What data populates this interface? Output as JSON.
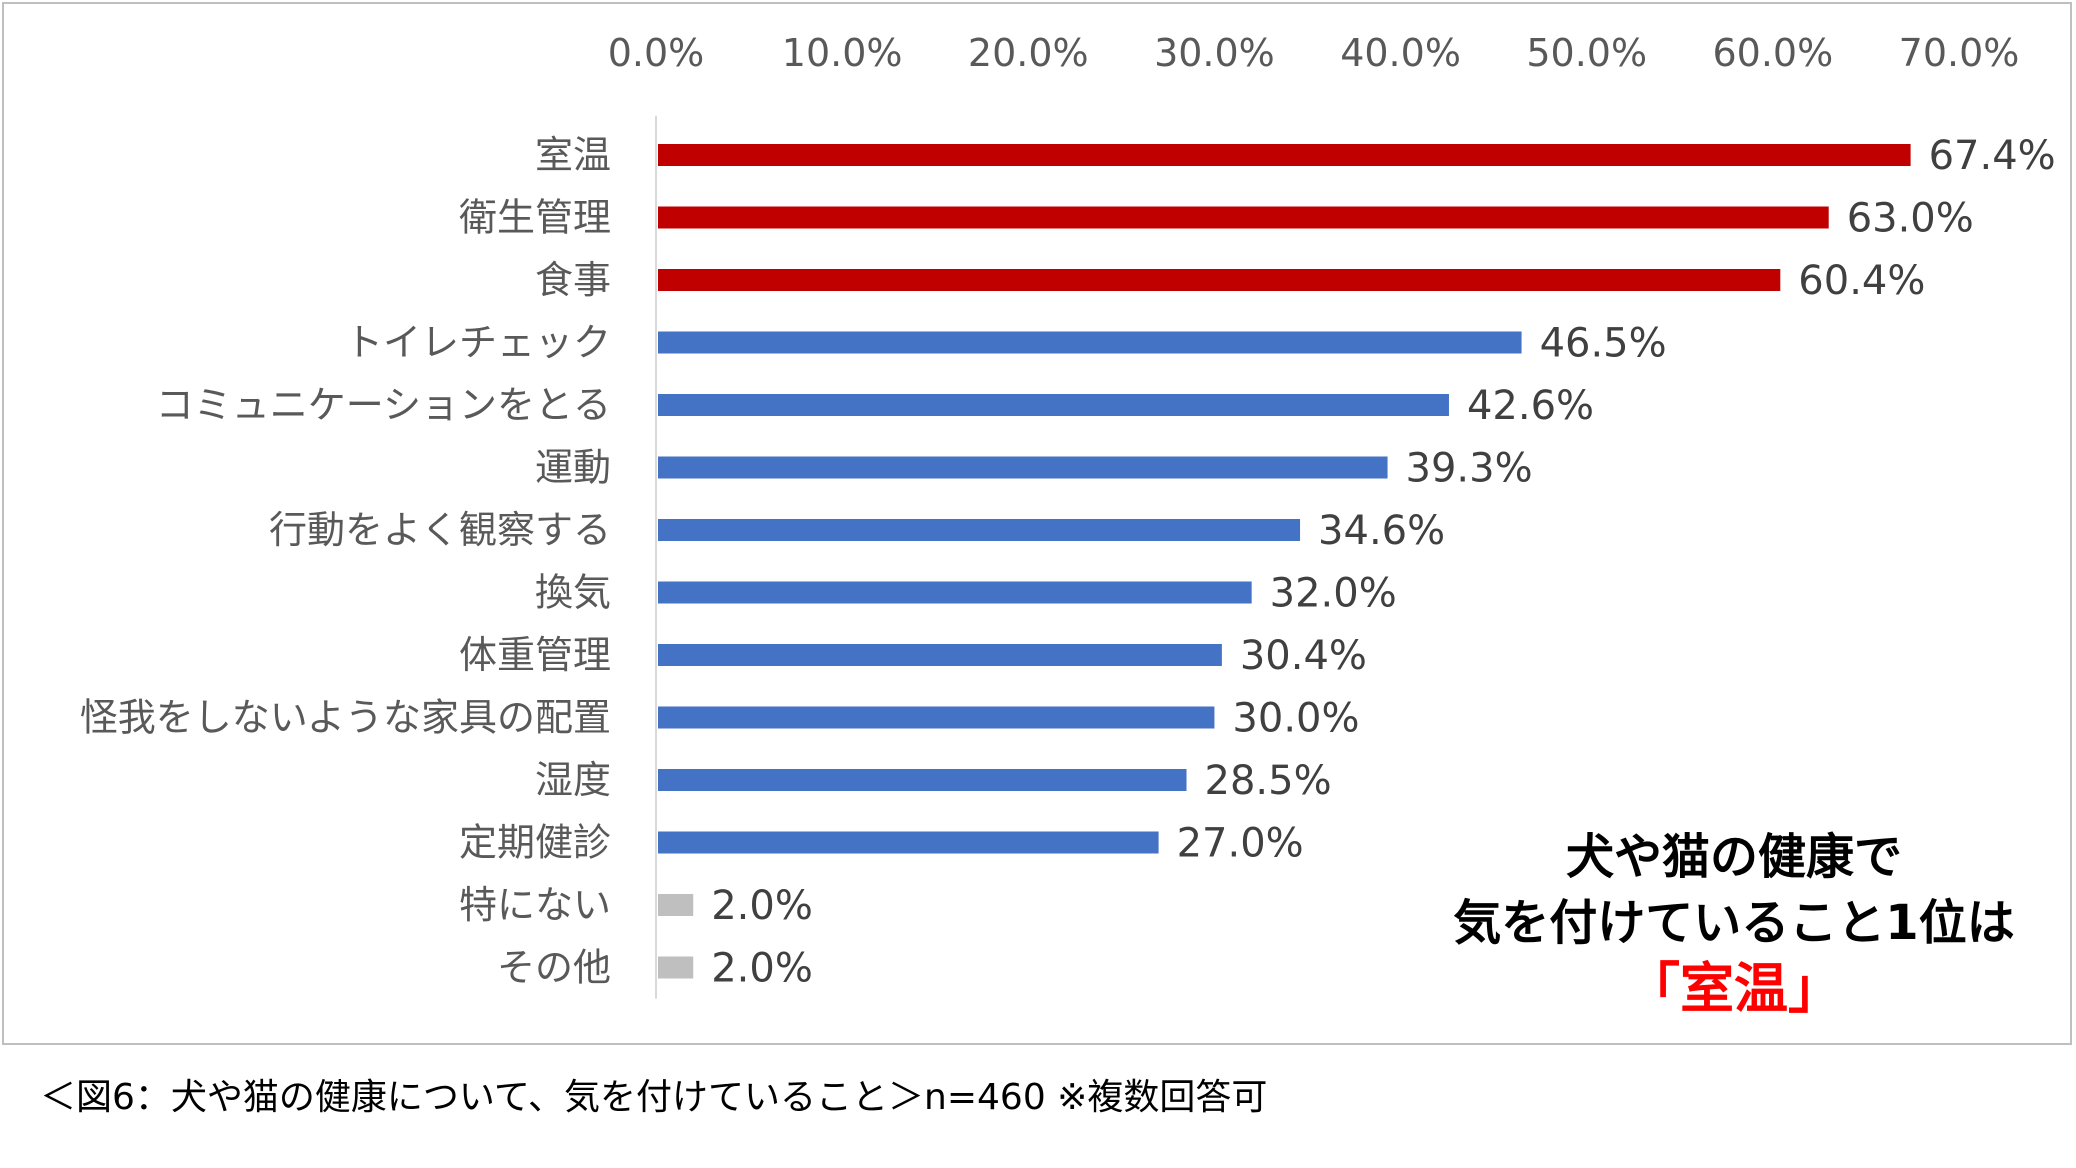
{
  "chart_data": {
    "type": "bar",
    "orientation": "horizontal",
    "categories": [
      "室温",
      "衛生管理",
      "食事",
      "トイレチェック",
      "コミュニケーションをとる",
      "運動",
      "行動をよく観察する",
      "換気",
      "体重管理",
      "怪我をしないような家具の配置",
      "湿度",
      "定期健診",
      "特にない",
      "その他"
    ],
    "values": [
      67.4,
      63.0,
      60.4,
      46.5,
      42.6,
      39.3,
      34.6,
      32.0,
      30.4,
      30.0,
      28.5,
      27.0,
      2.0,
      2.0
    ],
    "value_labels": [
      "67.4%",
      "63.0%",
      "60.4%",
      "46.5%",
      "42.6%",
      "39.3%",
      "34.6%",
      "32.0%",
      "30.4%",
      "30.0%",
      "28.5%",
      "27.0%",
      "2.0%",
      "2.0%"
    ],
    "bar_colors": [
      "#c00000",
      "#c00000",
      "#c00000",
      "#4472c4",
      "#4472c4",
      "#4472c4",
      "#4472c4",
      "#4472c4",
      "#4472c4",
      "#4472c4",
      "#4472c4",
      "#4472c4",
      "#bfbfbf",
      "#bfbfbf"
    ],
    "xlim": [
      0,
      70
    ],
    "xticks": [
      0,
      10,
      20,
      30,
      40,
      50,
      60,
      70
    ],
    "xtick_labels": [
      "0.0%",
      "10.0%",
      "20.0%",
      "30.0%",
      "40.0%",
      "50.0%",
      "60.0%",
      "70.0%"
    ],
    "x_axis_position": "top",
    "grid": false
  },
  "annotation": {
    "line1": "犬や猫の健康で",
    "line2": "気を付けていること1位は",
    "highlight": "「室温」",
    "highlight_color": "#ff0000"
  },
  "caption": "＜図6：犬や猫の健康について、気を付けていること＞n=460 ※複数回答可"
}
